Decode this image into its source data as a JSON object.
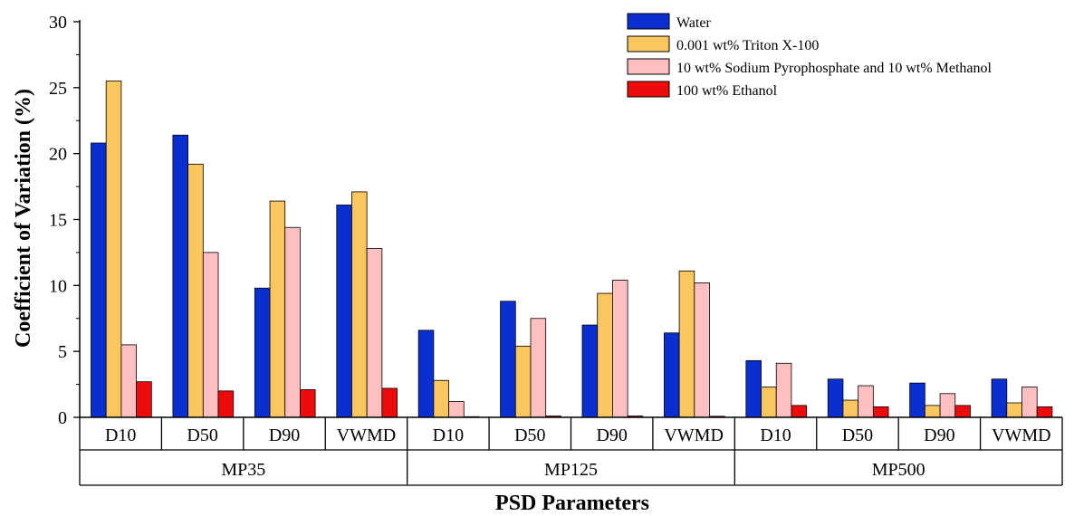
{
  "chart_data": {
    "type": "bar",
    "ylabel": "Coefficient of Variation (%)",
    "xlabel": "PSD Parameters",
    "ylim": [
      0,
      30
    ],
    "yticks": [
      0,
      5,
      10,
      15,
      20,
      25,
      30
    ],
    "grid": false,
    "legend_position": "top-right",
    "groups": [
      "MP35",
      "MP125",
      "MP500"
    ],
    "categories": [
      "D10",
      "D50",
      "D90",
      "VWMD",
      "D10",
      "D50",
      "D90",
      "VWMD",
      "D10",
      "D50",
      "D90",
      "VWMD"
    ],
    "series": [
      {
        "name": "Water",
        "color": "#0a2fd1",
        "values": [
          20.8,
          21.4,
          9.8,
          16.1,
          6.6,
          8.8,
          7.0,
          6.4,
          4.3,
          2.9,
          2.6,
          2.9
        ]
      },
      {
        "name": "0.001 wt% Triton X-100",
        "color": "#fac65e",
        "values": [
          25.5,
          19.2,
          16.4,
          17.1,
          2.8,
          5.4,
          9.4,
          11.1,
          2.3,
          1.3,
          0.9,
          1.1
        ]
      },
      {
        "name": "10 wt% Sodium Pyrophosphate and 10 wt% Methanol",
        "color": "#fdbfbf",
        "values": [
          5.5,
          12.5,
          14.4,
          12.8,
          1.2,
          7.5,
          10.4,
          10.2,
          4.1,
          2.4,
          1.8,
          2.3
        ]
      },
      {
        "name": "100 wt% Ethanol",
        "color": "#ee0b0b",
        "values": [
          2.7,
          2.0,
          2.1,
          2.2,
          0.05,
          0.1,
          0.1,
          0.08,
          0.9,
          0.8,
          0.9,
          0.8
        ]
      }
    ]
  }
}
